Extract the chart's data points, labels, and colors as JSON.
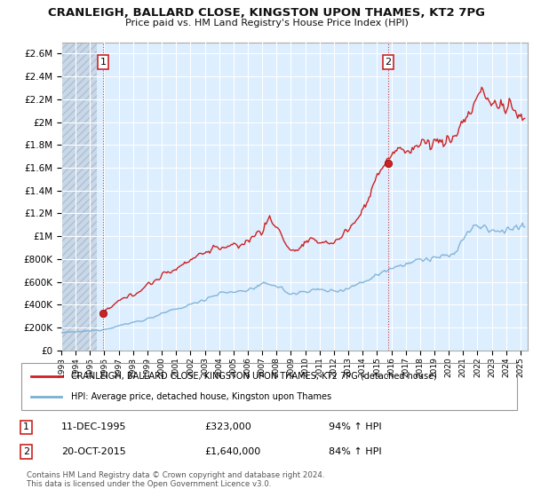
{
  "title": "CRANLEIGH, BALLARD CLOSE, KINGSTON UPON THAMES, KT2 7PG",
  "subtitle": "Price paid vs. HM Land Registry's House Price Index (HPI)",
  "legend_line1": "CRANLEIGH, BALLARD CLOSE, KINGSTON UPON THAMES, KT2 7PG (detached house)",
  "legend_line2": "HPI: Average price, detached house, Kingston upon Thames",
  "annotation1_label": "1",
  "annotation1_date": "11-DEC-1995",
  "annotation1_price": "£323,000",
  "annotation1_hpi": "94% ↑ HPI",
  "annotation2_label": "2",
  "annotation2_date": "20-OCT-2015",
  "annotation2_price": "£1,640,000",
  "annotation2_hpi": "84% ↑ HPI",
  "footer": "Contains HM Land Registry data © Crown copyright and database right 2024.\nThis data is licensed under the Open Government Licence v3.0.",
  "price_color": "#cc2222",
  "hpi_color": "#7aafd4",
  "point1_year": 1995.92,
  "point1_value": 323000,
  "point2_year": 2015.79,
  "point2_value": 1640000,
  "ylim": [
    0,
    2700000
  ],
  "yticks": [
    0,
    200000,
    400000,
    600000,
    800000,
    1000000,
    1200000,
    1400000,
    1600000,
    1800000,
    2000000,
    2200000,
    2400000,
    2600000
  ],
  "xlim_start": 1993.0,
  "xlim_end": 2025.5,
  "chart_bg": "#ddeeff",
  "hatch_bg": "#ccddee",
  "grid_color": "#ffffff",
  "border_color": "#aaaaaa"
}
